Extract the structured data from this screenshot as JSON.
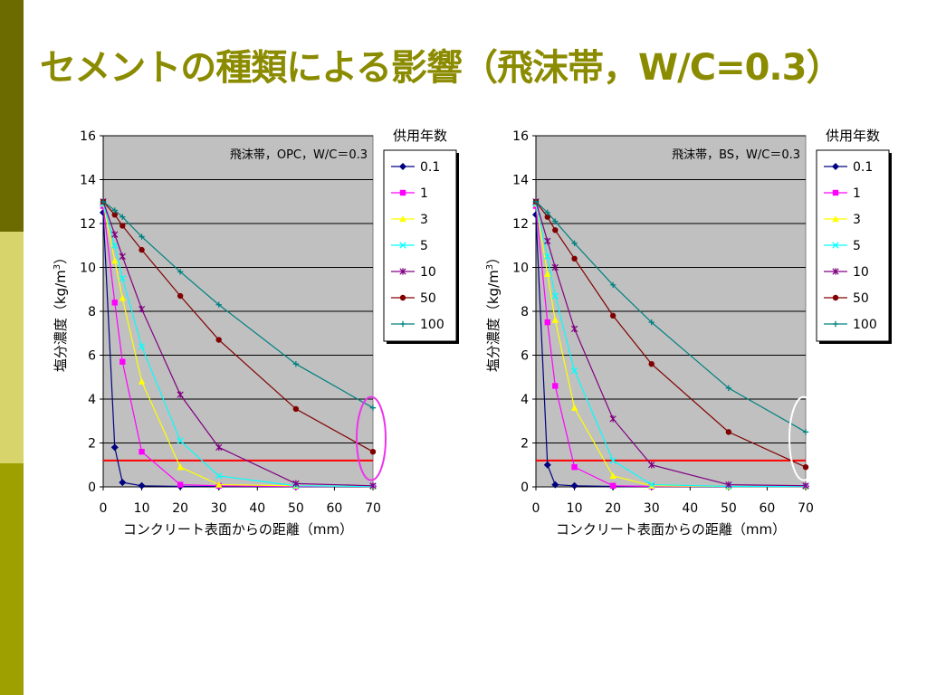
{
  "slide": {
    "title": "セメントの種類による影響（飛沫帯，W/C=0.3）",
    "accent_colors": {
      "dark": "#6b6b00",
      "light": "#d6d46a",
      "mid": "#9ea000",
      "title": "#8b8b00"
    }
  },
  "chart_data": [
    {
      "type": "line",
      "annotation": "飛沫帯，OPC，W/C＝0.3",
      "xlabel": "コンクリート表面からの距離（mm）",
      "ylabel": "塩分濃度（kg/m",
      "ylabel_sup": "3",
      "ylabel_close": "）",
      "legend_title": "供用年数",
      "legend_position": "right",
      "grid": true,
      "xlim": [
        0,
        70
      ],
      "ylim": [
        0,
        16
      ],
      "xticks": [
        0,
        10,
        20,
        30,
        40,
        50,
        60,
        70
      ],
      "yticks": [
        0,
        2,
        4,
        6,
        8,
        10,
        12,
        14,
        16
      ],
      "reference_line": {
        "y": 1.2,
        "color": "#ff0000"
      },
      "highlight": {
        "x": 70,
        "color": "#ee33ee"
      },
      "series": [
        {
          "name": "0.1",
          "color": "#000080",
          "marker": "diamond",
          "x": [
            0,
            3,
            5,
            10,
            20,
            30,
            50,
            70
          ],
          "y": [
            12.5,
            1.8,
            0.2,
            0.05,
            0.02,
            0.02,
            0.02,
            0.02
          ]
        },
        {
          "name": "1",
          "color": "#ff00ff",
          "marker": "square",
          "x": [
            0,
            3,
            5,
            10,
            20,
            30,
            50,
            70
          ],
          "y": [
            12.8,
            8.4,
            5.7,
            1.6,
            0.1,
            0.05,
            0.02,
            0.02
          ]
        },
        {
          "name": "3",
          "color": "#ffff00",
          "marker": "triangle",
          "x": [
            0,
            3,
            5,
            10,
            20,
            30,
            50,
            70
          ],
          "y": [
            12.9,
            10.3,
            8.6,
            4.8,
            0.9,
            0.1,
            0.05,
            0.02
          ]
        },
        {
          "name": "5",
          "color": "#00ffff",
          "marker": "x",
          "x": [
            0,
            3,
            5,
            10,
            20,
            30,
            50,
            70
          ],
          "y": [
            12.9,
            11.0,
            9.5,
            6.4,
            2.1,
            0.5,
            0.05,
            0.02
          ]
        },
        {
          "name": "10",
          "color": "#800080",
          "marker": "star",
          "x": [
            0,
            3,
            5,
            10,
            20,
            30,
            50,
            70
          ],
          "y": [
            13.0,
            11.5,
            10.5,
            8.1,
            4.2,
            1.8,
            0.15,
            0.05
          ]
        },
        {
          "name": "50",
          "color": "#800000",
          "marker": "circle",
          "x": [
            0,
            3,
            5,
            10,
            20,
            30,
            50,
            70
          ],
          "y": [
            13.0,
            12.4,
            11.9,
            10.8,
            8.7,
            6.7,
            3.55,
            1.6
          ]
        },
        {
          "name": "100",
          "color": "#008080",
          "marker": "plus",
          "x": [
            0,
            3,
            5,
            10,
            20,
            30,
            50,
            70
          ],
          "y": [
            13.0,
            12.6,
            12.3,
            11.4,
            9.8,
            8.3,
            5.6,
            3.6
          ]
        }
      ]
    },
    {
      "type": "line",
      "annotation": "飛沫帯，BS，W/C＝0.3",
      "xlabel": "コンクリート表面からの距離（mm）",
      "ylabel": "塩分濃度（kg/m",
      "ylabel_sup": "3",
      "ylabel_close": "）",
      "legend_title": "供用年数",
      "legend_position": "right",
      "grid": true,
      "xlim": [
        0,
        70
      ],
      "ylim": [
        0,
        16
      ],
      "xticks": [
        0,
        10,
        20,
        30,
        40,
        50,
        60,
        70
      ],
      "yticks": [
        0,
        2,
        4,
        6,
        8,
        10,
        12,
        14,
        16
      ],
      "reference_line": {
        "y": 1.2,
        "color": "#ff0000"
      },
      "highlight": {
        "x": 70,
        "color": "#ffffff"
      },
      "series": [
        {
          "name": "0.1",
          "color": "#000080",
          "marker": "diamond",
          "x": [
            0,
            3,
            5,
            10,
            20,
            30,
            50,
            70
          ],
          "y": [
            12.4,
            1.0,
            0.1,
            0.05,
            0.02,
            0.02,
            0.02,
            0.02
          ]
        },
        {
          "name": "1",
          "color": "#ff00ff",
          "marker": "square",
          "x": [
            0,
            3,
            5,
            10,
            20,
            30,
            50,
            70
          ],
          "y": [
            12.8,
            7.5,
            4.6,
            0.9,
            0.05,
            0.02,
            0.02,
            0.02
          ]
        },
        {
          "name": "3",
          "color": "#ffff00",
          "marker": "triangle",
          "x": [
            0,
            3,
            5,
            10,
            20,
            30,
            50,
            70
          ],
          "y": [
            12.9,
            9.7,
            7.6,
            3.6,
            0.5,
            0.05,
            0.02,
            0.02
          ]
        },
        {
          "name": "5",
          "color": "#00ffff",
          "marker": "x",
          "x": [
            0,
            3,
            5,
            10,
            20,
            30,
            50,
            70
          ],
          "y": [
            12.9,
            10.5,
            8.7,
            5.3,
            1.2,
            0.1,
            0.02,
            0.02
          ]
        },
        {
          "name": "10",
          "color": "#800080",
          "marker": "star",
          "x": [
            0,
            3,
            5,
            10,
            20,
            30,
            50,
            70
          ],
          "y": [
            13.0,
            11.2,
            10.0,
            7.2,
            3.1,
            1.0,
            0.1,
            0.05
          ]
        },
        {
          "name": "50",
          "color": "#800000",
          "marker": "circle",
          "x": [
            0,
            3,
            5,
            10,
            20,
            30,
            50,
            70
          ],
          "y": [
            13.0,
            12.3,
            11.7,
            10.4,
            7.8,
            5.6,
            2.5,
            0.9
          ]
        },
        {
          "name": "100",
          "color": "#008080",
          "marker": "plus",
          "x": [
            0,
            3,
            5,
            10,
            20,
            30,
            50,
            70
          ],
          "y": [
            13.0,
            12.5,
            12.1,
            11.1,
            9.2,
            7.5,
            4.5,
            2.5
          ]
        }
      ]
    }
  ]
}
